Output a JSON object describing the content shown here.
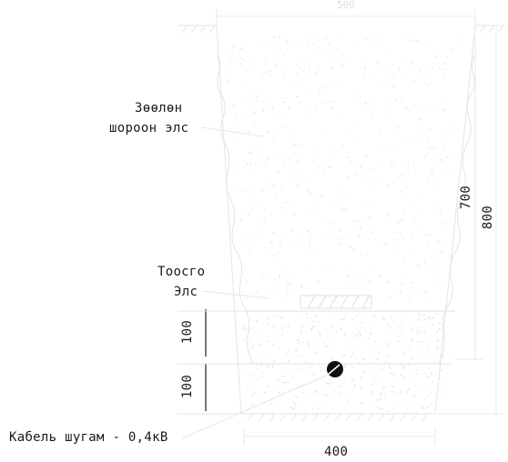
{
  "drawing": {
    "top_width_label": "500",
    "bottom_width_label": "400",
    "depth_inner_label": "700",
    "depth_total_label": "800",
    "layer_label_1": "100",
    "layer_label_2": "100",
    "fill_label_line1": "Зөөлөн",
    "fill_label_line2": "шороон элс",
    "sand_label_line1": "Тоосго",
    "sand_label_line2": "Элс",
    "cable_label": "Кабель шугам - 0,4кВ",
    "colors": {
      "line": "#1a1a1a",
      "faint": "#e6e6e6",
      "hatch": "#ececec"
    }
  }
}
